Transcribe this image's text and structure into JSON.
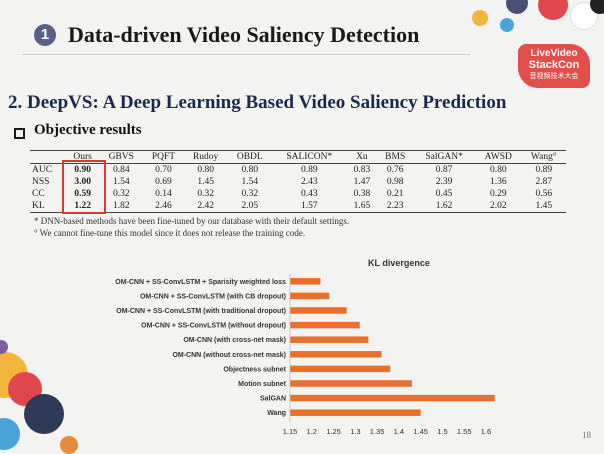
{
  "header": {
    "number": "1",
    "title": "Data-driven Video Saliency Detection"
  },
  "logo": {
    "line1": "LiveVideo",
    "line2": "StackCon",
    "line3": "音视频技术大会"
  },
  "section": {
    "title": "2. DeepVS: A Deep Learning Based Video Saliency Prediction"
  },
  "bullet": {
    "text": "Objective results"
  },
  "results_table": {
    "columns": [
      "",
      "Ours",
      "GBVS",
      "PQFT",
      "Rudoy",
      "OBDL",
      "SALICON*",
      "Xu",
      "BMS",
      "SalGAN*",
      "AWSD",
      "Wang°"
    ],
    "rows": [
      [
        "AUC",
        "0.90",
        "0.84",
        "0.70",
        "0.80",
        "0.80",
        "0.89",
        "0.83",
        "0.76",
        "0.87",
        "0.80",
        "0.89"
      ],
      [
        "NSS",
        "3.00",
        "1.54",
        "0.69",
        "1.45",
        "1.54",
        "2.43",
        "1.47",
        "0.98",
        "2.39",
        "1.36",
        "2.87"
      ],
      [
        "CC",
        "0.59",
        "0.32",
        "0.14",
        "0.32",
        "0.32",
        "0.43",
        "0.38",
        "0.21",
        "0.45",
        "0.29",
        "0.56"
      ],
      [
        "KL",
        "1.22",
        "1.82",
        "2.46",
        "2.42",
        "2.05",
        "1.57",
        "1.65",
        "2.23",
        "1.62",
        "2.02",
        "1.45"
      ]
    ]
  },
  "notes": [
    "* DNN-based methods have been fine-tuned by our database with their default settings.",
    "° We cannot fine-tune this model since it does not release the training code."
  ],
  "chart_data": {
    "type": "bar",
    "orientation": "horizontal",
    "title": "KL divergence",
    "categories": [
      "OM-CNN + SS-ConvLSTM + Sparisity weighted loss",
      "OM-CNN + SS-ConvLSTM (with CB dropout)",
      "OM-CNN + SS-ConvLSTM (with traditional dropout)",
      "OM-CNN + SS-ConvLSTM (without dropout)",
      "OM-CNN (with cross-net mask)",
      "OM-CNN (without cross-net mask)",
      "Objectness subnet",
      "Motion subnet",
      "SalGAN",
      "Wang"
    ],
    "values": [
      1.22,
      1.24,
      1.28,
      1.31,
      1.33,
      1.36,
      1.38,
      1.43,
      1.62,
      1.45
    ],
    "xlim": [
      1.15,
      1.6
    ],
    "xticks": [
      "1.15",
      "1.2",
      "1.25",
      "1.3",
      "1.35",
      "1.4",
      "1.45",
      "1.5",
      "1.55",
      "1.6"
    ],
    "bar_color": "#e8702a",
    "grid": false
  },
  "page_number": "18"
}
